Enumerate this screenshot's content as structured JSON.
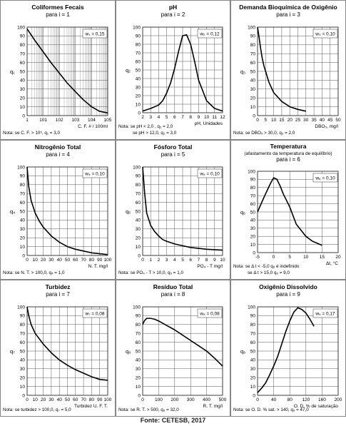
{
  "caption": "Fonte: CETESB, 2017",
  "charts": [
    {
      "title": "Coliformes Fecais",
      "subtitle": "para i = 1",
      "weight": "w₁ = 0,15",
      "xlabel": "C. F. # / 100ml",
      "ylabel": "q₁",
      "note": [
        "Nota:  se C. F. > 10⁵, q₁ = 3,0"
      ]
    },
    {
      "title": "pH",
      "subtitle": "para i = 2",
      "weight": "w₂ = 0,12",
      "xlabel": "pH, Unidades",
      "ylabel": "q₂",
      "note": [
        "Nota:  se pH < 2,0 ,   q₂ = 2,0",
        "se pH > 12,0,  q₂ = 3,0"
      ]
    },
    {
      "title": "Demanda Bioquímica de Oxigênio",
      "subtitle": "para i = 3",
      "weight": "w₃ = 0,10",
      "xlabel": "DBO₅, mg/l",
      "ylabel": "q₃",
      "note": [
        "Nota:  se DBO₅ > 30,0, q₃ = 2,0"
      ]
    },
    {
      "title": "Nitrogênio Total",
      "subtitle": "para i = 4",
      "weight": "w₄ = 0,10",
      "xlabel": "N. T. mg/l",
      "ylabel": "q₄",
      "note": [
        "Nota:  se N. T. > 100,0, q₄ = 1,0"
      ]
    },
    {
      "title": "Fósforo Total",
      "subtitle": "para i = 5",
      "weight": "w₅ = 0,10",
      "xlabel": "PO₄ - T mg/l",
      "ylabel": "q₅",
      "note": [
        "Nota:  se PO₄ - T > 10,0, q₅ = 1,0"
      ]
    },
    {
      "title": "Temperatura",
      "subtitle": "para i = 6",
      "subtitle2": "(afastamento da temperatura de equilíbrio)",
      "weight": "w₆ = 0,10",
      "xlabel": "Δt, °C",
      "ylabel": "q₆",
      "note": [
        "Nota:  se Δ t < -5,0 q₆ é indefinido",
        "se Δ t > 15,0 q₆ = 9,0"
      ]
    },
    {
      "title": "Turbidez",
      "subtitle": "para i = 7",
      "weight": "w₇ = 0,08",
      "xlabel": "Turbidez U. F. T.",
      "ylabel": "q₇",
      "note": [
        "Nota:  se turbidez > 100,0, q₇ = 5,0"
      ]
    },
    {
      "title": "Resíduo Total",
      "subtitle": "para i = 8",
      "weight": "w₈ = 0,08",
      "xlabel": "R. T. mg/l",
      "ylabel": "q₈",
      "note": [
        "Nota:  se R. T. > 500,  q₈ = 32,0"
      ]
    },
    {
      "title": "Oxigênio Dissolvido",
      "subtitle": "para i = 9",
      "weight": "w₉ = 0,17",
      "xlabel": "O. D. % de saturação",
      "ylabel": "q₉",
      "note": [
        "Nota:  se O. D. % sat. > 140, q₉ = 47,0"
      ]
    }
  ],
  "chart_data": [
    {
      "type": "line",
      "xscale": "log",
      "xlim": [
        1,
        100000
      ],
      "ylim": [
        0,
        100
      ],
      "xticks": [
        1,
        10,
        100,
        1000,
        10000,
        100000
      ],
      "xticklabels": [
        "1",
        "101",
        "102",
        "103",
        "104",
        "105"
      ],
      "yticks": [
        0,
        10,
        20,
        30,
        40,
        50,
        60,
        70,
        80,
        90,
        100
      ],
      "x": [
        1,
        3,
        10,
        30,
        100,
        300,
        1000,
        3000,
        10000,
        30000,
        100000
      ],
      "y": [
        98,
        85,
        72,
        60,
        48,
        37,
        27,
        18,
        10,
        5,
        3
      ]
    },
    {
      "type": "line",
      "xlim": [
        2,
        12
      ],
      "ylim": [
        0,
        100
      ],
      "xticks": [
        2,
        3,
        4,
        5,
        6,
        7,
        8,
        9,
        10,
        11,
        12
      ],
      "yticks": [
        0,
        10,
        20,
        30,
        40,
        50,
        60,
        70,
        80,
        90,
        100
      ],
      "x": [
        2,
        3,
        4,
        4.5,
        5,
        5.5,
        6,
        6.5,
        7,
        7.5,
        8,
        8.5,
        9,
        10,
        11,
        12
      ],
      "y": [
        2,
        5,
        9,
        14,
        23,
        35,
        52,
        72,
        90,
        91,
        80,
        60,
        38,
        14,
        5,
        2
      ]
    },
    {
      "type": "line",
      "xlim": [
        0,
        50
      ],
      "ylim": [
        0,
        100
      ],
      "xticks": [
        0,
        5,
        10,
        15,
        20,
        25,
        30,
        35,
        40,
        45,
        50
      ],
      "yticks": [
        0,
        10,
        20,
        30,
        40,
        50,
        60,
        70,
        80,
        90,
        100
      ],
      "x": [
        0,
        1,
        2,
        3,
        4,
        5,
        7,
        10,
        15,
        20,
        25,
        30
      ],
      "y": [
        100,
        88,
        75,
        64,
        56,
        50,
        38,
        26,
        16,
        10,
        7,
        5
      ]
    },
    {
      "type": "line",
      "xlim": [
        0,
        100
      ],
      "ylim": [
        0,
        100
      ],
      "xticks": [
        0,
        10,
        20,
        30,
        40,
        50,
        60,
        70,
        80,
        90,
        100
      ],
      "yticks": [
        0,
        10,
        20,
        30,
        40,
        50,
        60,
        70,
        80,
        90,
        100
      ],
      "x": [
        0,
        2,
        5,
        10,
        15,
        20,
        30,
        40,
        50,
        60,
        70,
        80,
        90,
        100
      ],
      "y": [
        100,
        78,
        62,
        48,
        39,
        32,
        22,
        15,
        10,
        7,
        5,
        3,
        2,
        1
      ]
    },
    {
      "type": "line",
      "xlim": [
        0,
        10
      ],
      "ylim": [
        0,
        100
      ],
      "xticks": [
        0,
        1,
        2,
        3,
        4,
        5,
        6,
        7,
        8,
        9,
        10
      ],
      "yticks": [
        0,
        10,
        20,
        30,
        40,
        50,
        60,
        70,
        80,
        90,
        100
      ],
      "x": [
        0,
        0.25,
        0.5,
        1,
        1.5,
        2,
        2.5,
        3,
        4,
        5,
        6,
        7,
        8,
        9,
        10
      ],
      "y": [
        100,
        70,
        48,
        34,
        27,
        22,
        18,
        16,
        13,
        11,
        9,
        8,
        7,
        6.5,
        6
      ]
    },
    {
      "type": "line",
      "xlim": [
        -5,
        20
      ],
      "ylim": [
        0,
        100
      ],
      "xticks": [
        -5,
        0,
        5,
        10,
        15,
        20
      ],
      "yticks": [
        0,
        10,
        20,
        30,
        40,
        50,
        60,
        70,
        80,
        90,
        100
      ],
      "x": [
        -5,
        -3,
        -1,
        0,
        1,
        2,
        3,
        5,
        7,
        10,
        12,
        15
      ],
      "y": [
        50,
        68,
        85,
        92,
        90,
        82,
        72,
        56,
        35,
        20,
        14,
        9
      ]
    },
    {
      "type": "line",
      "xlim": [
        0,
        100
      ],
      "ylim": [
        0,
        100
      ],
      "xticks": [
        0,
        10,
        20,
        30,
        40,
        50,
        60,
        70,
        80,
        90,
        100
      ],
      "yticks": [
        0,
        10,
        20,
        30,
        40,
        50,
        60,
        70,
        80,
        90,
        100
      ],
      "x": [
        0,
        2,
        5,
        10,
        20,
        30,
        40,
        50,
        60,
        70,
        80,
        90,
        100
      ],
      "y": [
        100,
        90,
        80,
        70,
        58,
        48,
        40,
        34,
        29,
        25,
        21,
        18,
        17
      ]
    },
    {
      "type": "line",
      "xlim": [
        0,
        500
      ],
      "ylim": [
        0,
        100
      ],
      "xticks": [
        0,
        100,
        200,
        300,
        400,
        500
      ],
      "yticks": [
        0,
        10,
        20,
        30,
        40,
        50,
        60,
        70,
        80,
        90,
        100
      ],
      "x": [
        0,
        10,
        25,
        50,
        75,
        100,
        150,
        200,
        250,
        300,
        350,
        400,
        450,
        500
      ],
      "y": [
        80,
        84,
        87,
        87,
        86,
        84,
        79,
        74,
        68,
        62,
        56,
        50,
        42,
        33
      ]
    },
    {
      "type": "line",
      "xlim": [
        0,
        200
      ],
      "ylim": [
        0,
        100
      ],
      "xticks": [
        0,
        40,
        80,
        120,
        160,
        200
      ],
      "xticklabels": [
        "0",
        "40",
        "80",
        "120",
        "160",
        "200"
      ],
      "yticks": [
        0,
        10,
        20,
        30,
        40,
        50,
        60,
        70,
        80,
        90,
        100
      ],
      "x": [
        0,
        10,
        20,
        30,
        40,
        50,
        60,
        70,
        80,
        90,
        100,
        110,
        120,
        130,
        140
      ],
      "y": [
        3,
        8,
        14,
        23,
        33,
        44,
        58,
        72,
        84,
        94,
        99,
        97,
        93,
        86,
        78
      ]
    }
  ]
}
